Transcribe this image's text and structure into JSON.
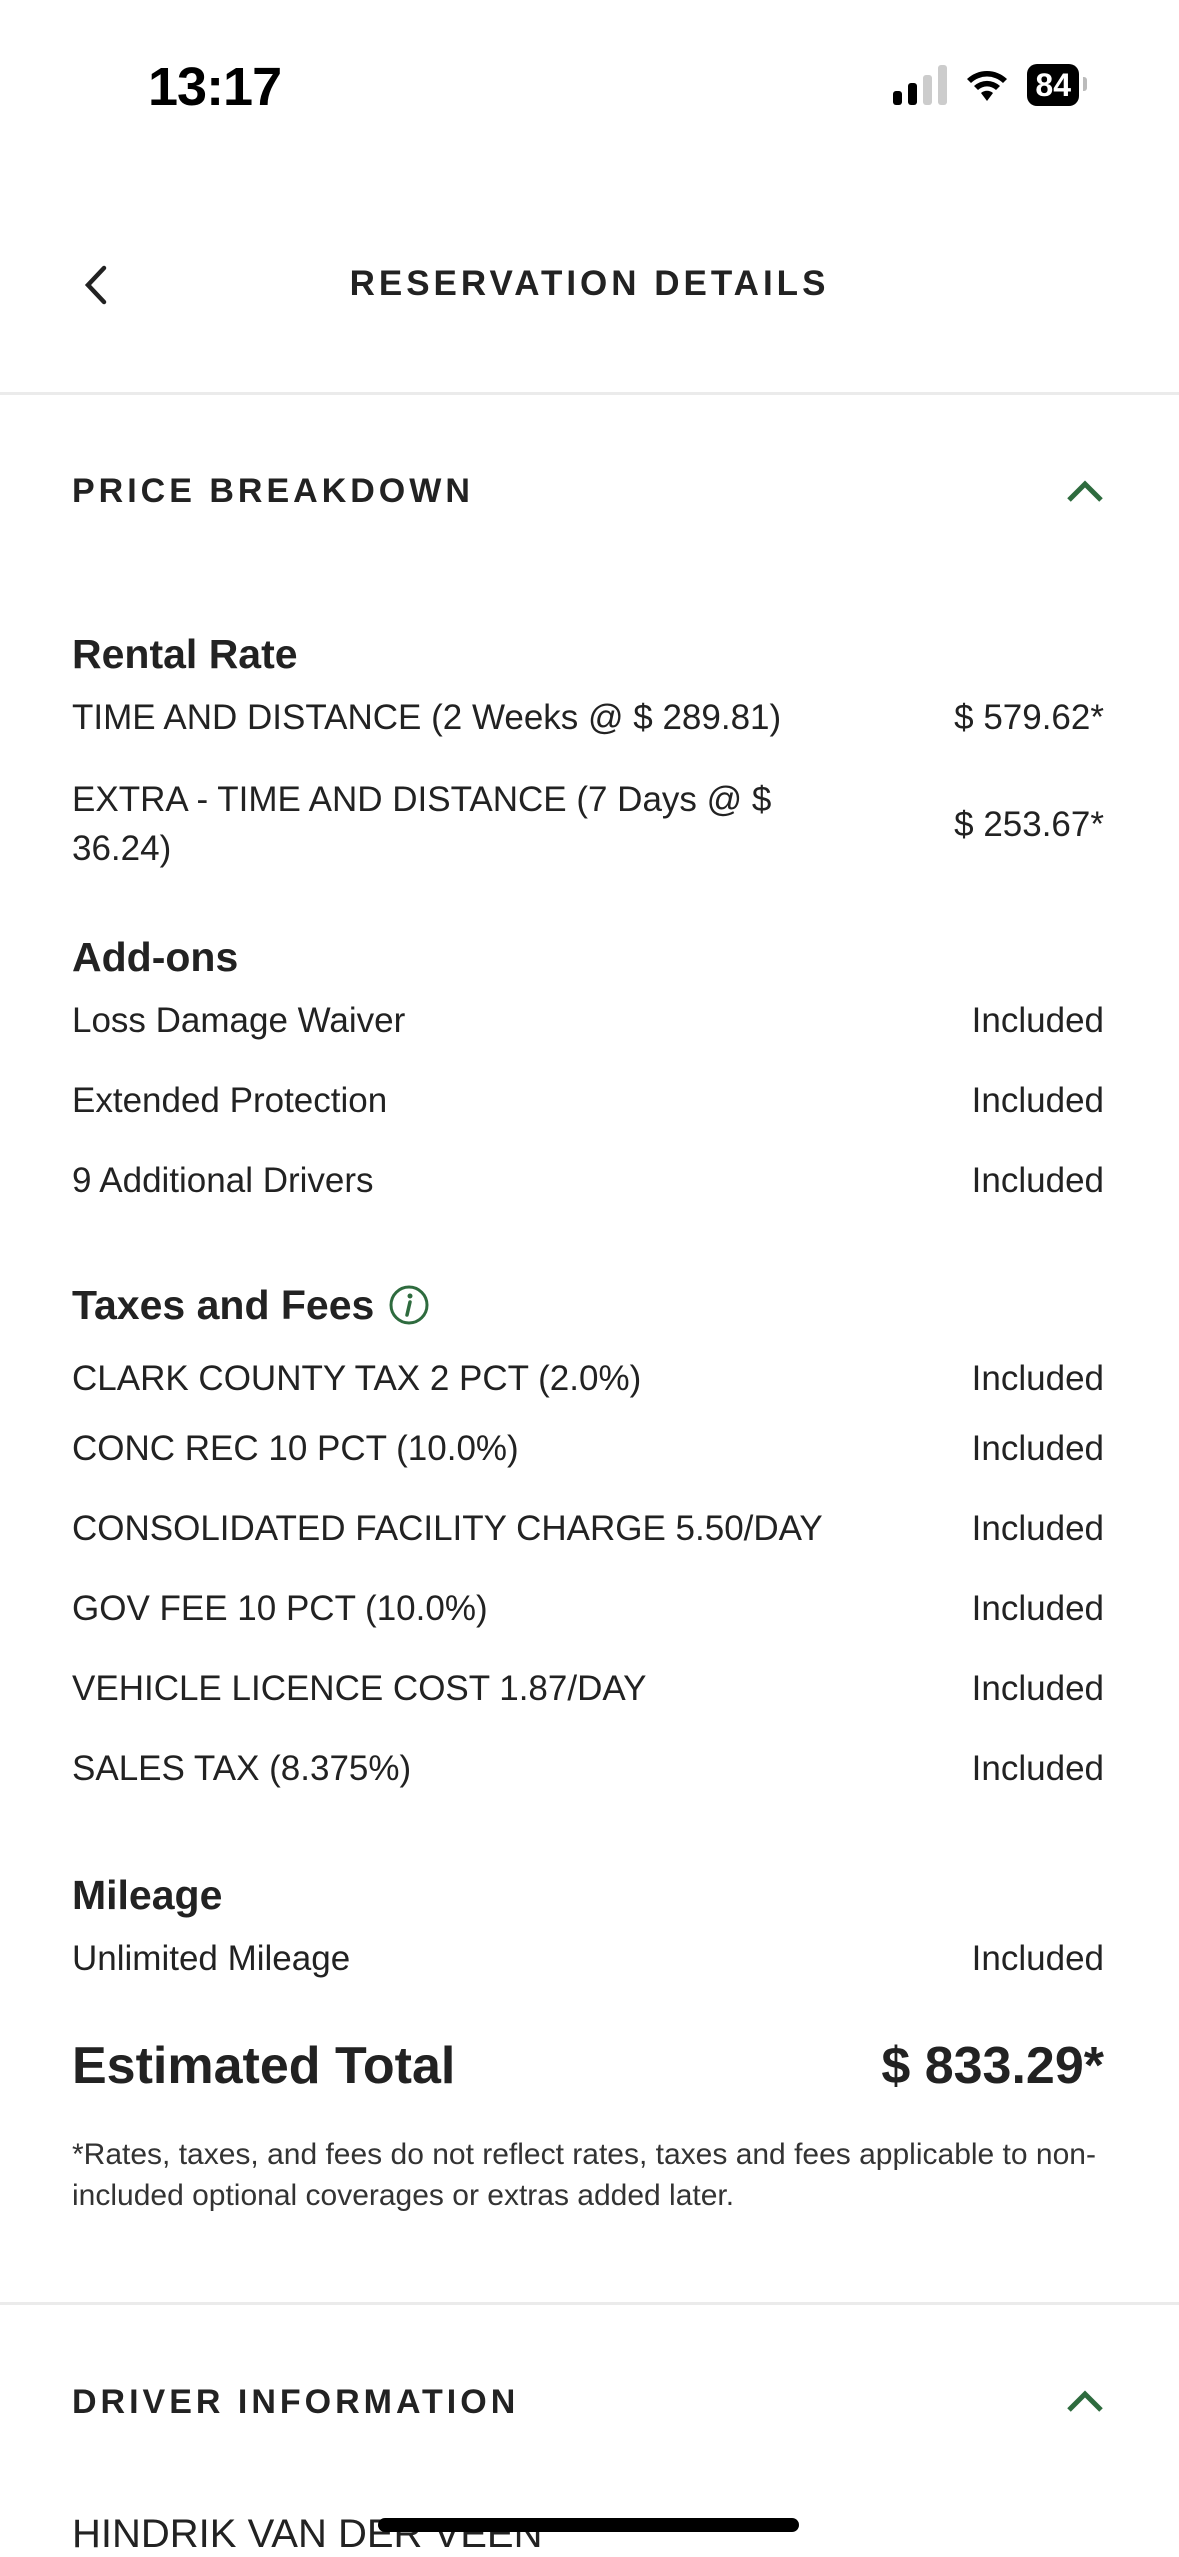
{
  "status_bar": {
    "time": "13:17",
    "battery": "84"
  },
  "header": {
    "title": "RESERVATION DETAILS"
  },
  "price_breakdown": {
    "title": "PRICE BREAKDOWN",
    "accent": "#2e6b3e",
    "rental_rate": {
      "heading": "Rental Rate",
      "rows": [
        {
          "label": "TIME AND DISTANCE (2 Weeks @ $ 289.81)",
          "value": "$ 579.62*"
        },
        {
          "label": "EXTRA - TIME AND DISTANCE (7 Days @ $ 36.24)",
          "value": "$ 253.67*"
        }
      ]
    },
    "addons": {
      "heading": "Add-ons",
      "rows": [
        {
          "label": "Loss Damage Waiver",
          "value": "Included"
        },
        {
          "label": "Extended Protection",
          "value": "Included"
        },
        {
          "label": "9 Additional Drivers",
          "value": "Included"
        }
      ]
    },
    "taxes": {
      "heading": "Taxes and Fees",
      "rows": [
        {
          "label": "CLARK COUNTY TAX 2 PCT (2.0%)",
          "value": "Included"
        },
        {
          "label": "CONC REC 10 PCT (10.0%)",
          "value": "Included"
        },
        {
          "label": "CONSOLIDATED FACILITY CHARGE 5.50/DAY",
          "value": "Included"
        },
        {
          "label": "GOV FEE 10 PCT (10.0%)",
          "value": "Included"
        },
        {
          "label": "VEHICLE LICENCE COST 1.87/DAY",
          "value": "Included"
        },
        {
          "label": "SALES TAX (8.375%)",
          "value": "Included"
        }
      ]
    },
    "mileage": {
      "heading": "Mileage",
      "rows": [
        {
          "label": "Unlimited Mileage",
          "value": "Included"
        }
      ]
    },
    "total_label": "Estimated Total",
    "total_value": "$ 833.29*",
    "disclaimer": "*Rates, taxes, and fees do not reflect rates, taxes and fees applicable to non-included optional coverages or extras added later."
  },
  "driver_information": {
    "title": "DRIVER INFORMATION",
    "name": "HINDRIK VAN DER VEEN"
  }
}
